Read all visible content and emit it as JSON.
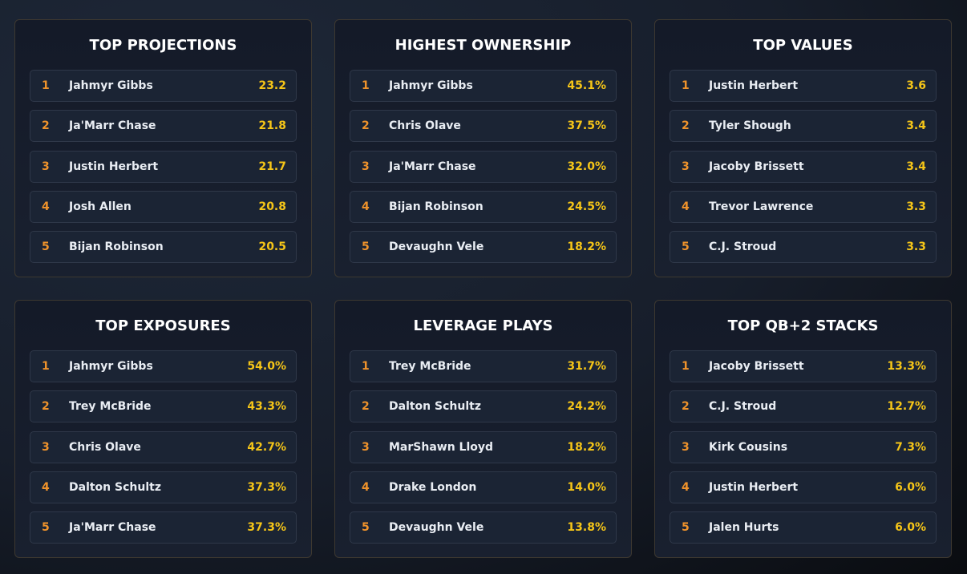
{
  "panels": [
    {
      "title": "TOP PROJECTIONS",
      "rows": [
        [
          "1",
          "Jahmyr Gibbs",
          "23.2"
        ],
        [
          "2",
          "Ja'Marr Chase",
          "21.8"
        ],
        [
          "3",
          "Justin Herbert",
          "21.7"
        ],
        [
          "4",
          "Josh Allen",
          "20.8"
        ],
        [
          "5",
          "Bijan Robinson",
          "20.5"
        ]
      ]
    },
    {
      "title": "HIGHEST OWNERSHIP",
      "rows": [
        [
          "1",
          "Jahmyr Gibbs",
          "45.1%"
        ],
        [
          "2",
          "Chris Olave",
          "37.5%"
        ],
        [
          "3",
          "Ja'Marr Chase",
          "32.0%"
        ],
        [
          "4",
          "Bijan Robinson",
          "24.5%"
        ],
        [
          "5",
          "Devaughn Vele",
          "18.2%"
        ]
      ]
    },
    {
      "title": "TOP VALUES",
      "rows": [
        [
          "1",
          "Justin Herbert",
          "3.6"
        ],
        [
          "2",
          "Tyler Shough",
          "3.4"
        ],
        [
          "3",
          "Jacoby Brissett",
          "3.4"
        ],
        [
          "4",
          "Trevor Lawrence",
          "3.3"
        ],
        [
          "5",
          "C.J. Stroud",
          "3.3"
        ]
      ]
    },
    {
      "title": "TOP EXPOSURES",
      "rows": [
        [
          "1",
          "Jahmyr Gibbs",
          "54.0%"
        ],
        [
          "2",
          "Trey McBride",
          "43.3%"
        ],
        [
          "3",
          "Chris Olave",
          "42.7%"
        ],
        [
          "4",
          "Dalton Schultz",
          "37.3%"
        ],
        [
          "5",
          "Ja'Marr Chase",
          "37.3%"
        ]
      ]
    },
    {
      "title": "LEVERAGE PLAYS",
      "rows": [
        [
          "1",
          "Trey McBride",
          "31.7%"
        ],
        [
          "2",
          "Dalton Schultz",
          "24.2%"
        ],
        [
          "3",
          "MarShawn Lloyd",
          "18.2%"
        ],
        [
          "4",
          "Drake London",
          "14.0%"
        ],
        [
          "5",
          "Devaughn Vele",
          "13.8%"
        ]
      ]
    },
    {
      "title": "TOP QB+2 STACKS",
      "rows": [
        [
          "1",
          "Jacoby Brissett",
          "13.3%"
        ],
        [
          "2",
          "C.J. Stroud",
          "12.7%"
        ],
        [
          "3",
          "Kirk Cousins",
          "7.3%"
        ],
        [
          "4",
          "Justin Herbert",
          "6.0%"
        ],
        [
          "5",
          "Jalen Hurts",
          "6.0%"
        ]
      ]
    }
  ]
}
